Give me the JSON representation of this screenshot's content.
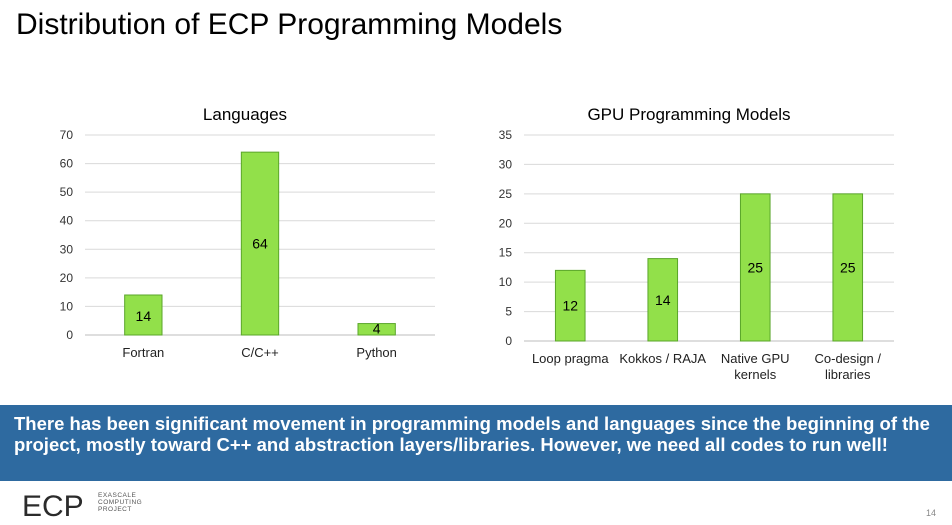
{
  "slide": {
    "title": "Distribution of ECP Programming Models",
    "banner_text": "There has been significant movement in programming models and languages since the beginning of the project, mostly toward C++ and abstraction layers/libraries.  However, we need all codes to run well!",
    "logo_text": "ECP",
    "logo_subtext": "EXASCALE COMPUTING PROJECT",
    "page_number": "14"
  },
  "colors": {
    "bar_fill": "#92e04a",
    "bar_stroke": "#5aa62a",
    "banner_bg": "#2e6aa0",
    "logo_accent": "#e03a2f"
  },
  "chart_data": [
    {
      "type": "bar",
      "title": "Languages",
      "categories": [
        "Fortran",
        "C/C++",
        "Python"
      ],
      "values": [
        14,
        64,
        4
      ],
      "data_labels": [
        "14",
        "64",
        "4"
      ],
      "ylim": [
        0,
        70
      ],
      "yticks": [
        0,
        10,
        20,
        30,
        40,
        50,
        60,
        70
      ],
      "grid": true,
      "legend": "none"
    },
    {
      "type": "bar",
      "title": "GPU Programming Models",
      "categories": [
        "Loop pragma",
        "Kokkos / RAJA",
        "Native GPU kernels",
        "Co-design / libraries"
      ],
      "category_lines": [
        [
          "Loop pragma"
        ],
        [
          "Kokkos / RAJA"
        ],
        [
          "Native GPU",
          "kernels"
        ],
        [
          "Co-design /",
          "libraries"
        ]
      ],
      "values": [
        12,
        14,
        25,
        25
      ],
      "data_labels": [
        "12",
        "14",
        "25",
        "25"
      ],
      "ylim": [
        0,
        35
      ],
      "yticks": [
        0,
        5,
        10,
        15,
        20,
        25,
        30,
        35
      ],
      "grid": true,
      "legend": "none"
    }
  ]
}
